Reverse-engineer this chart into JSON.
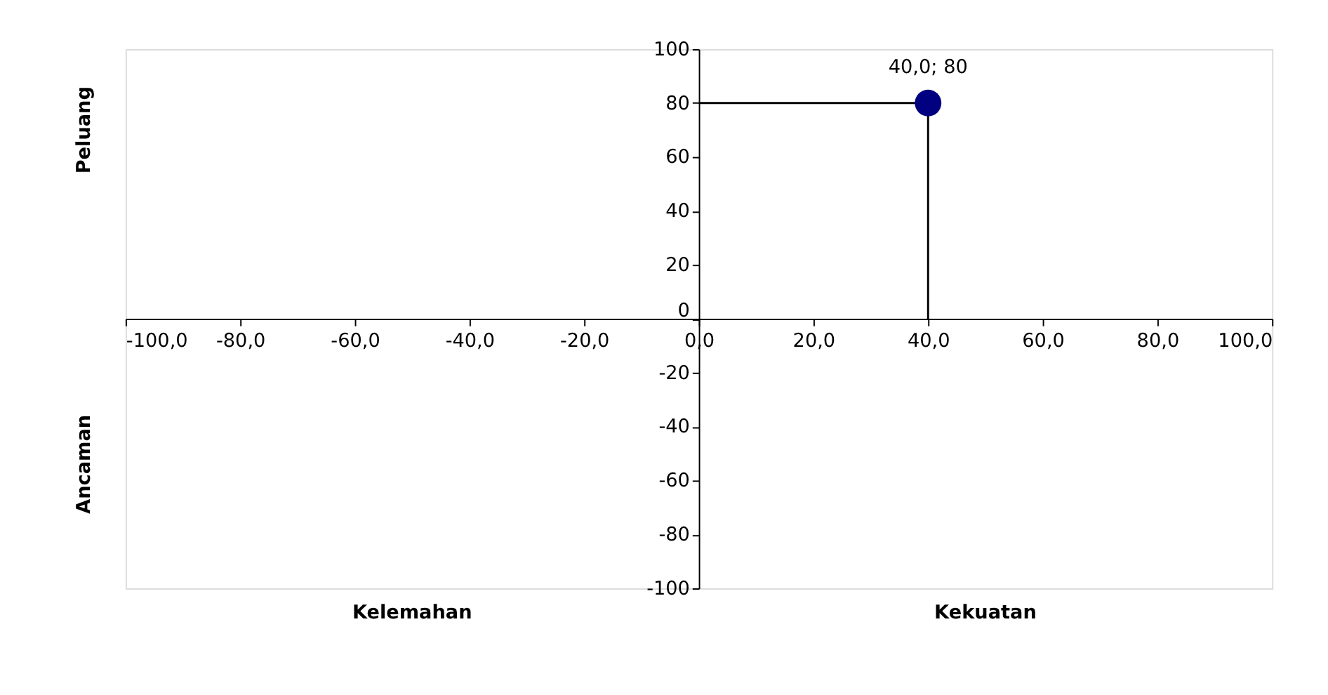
{
  "chart_data": {
    "type": "scatter",
    "x": [
      40
    ],
    "values": [
      80
    ],
    "color": "#000080",
    "marker": "circle",
    "errors": [
      [
        0,
        80
      ]
    ],
    "xerrors": [
      [
        0,
        40
      ]
    ],
    "value_labels": [
      "40,0; 80"
    ],
    "xlim": [
      -100,
      100
    ],
    "ylim": [
      -100,
      100
    ],
    "xticks": [
      {
        "value": -100,
        "label": "-100,0"
      },
      {
        "value": -80,
        "label": "-80,0"
      },
      {
        "value": -60,
        "label": "-60,0"
      },
      {
        "value": -40,
        "label": "-40,0"
      },
      {
        "value": -20,
        "label": "-20,0"
      },
      {
        "value": 0,
        "label": "0,0"
      },
      {
        "value": 20,
        "label": "20,0"
      },
      {
        "value": 40,
        "label": "40,0"
      },
      {
        "value": 60,
        "label": "60,0"
      },
      {
        "value": 80,
        "label": "80,0"
      },
      {
        "value": 100,
        "label": "100,0"
      }
    ],
    "yticks": [
      -100,
      -80,
      -60,
      -40,
      -20,
      0,
      20,
      40,
      60,
      80,
      100
    ],
    "annotations": [
      "Peluang",
      "Ancaman",
      "Kelemahan",
      "Kekuatan"
    ]
  }
}
